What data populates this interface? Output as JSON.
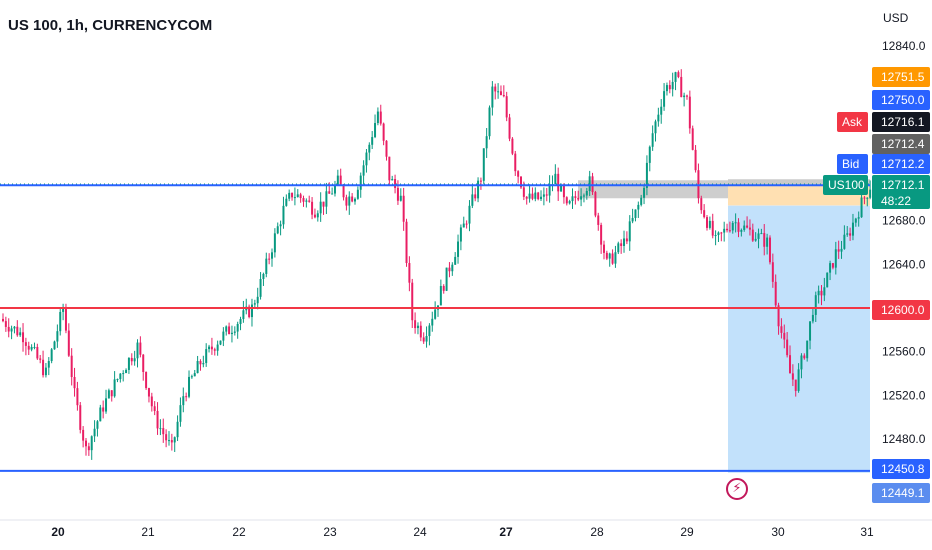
{
  "header": {
    "title": "US 100, 1h, CURRENCYCOM",
    "currency": "USD"
  },
  "icons": {
    "event": "lightning-icon"
  },
  "colors": {
    "up": "#089981",
    "down": "#e91e63",
    "resistance": "#2962ff",
    "support": "#f23645",
    "ask": "#f23645",
    "bid": "#2962ff",
    "last": "#089981",
    "target": "#ff9800",
    "position_stop": "#9e9e9e",
    "position_profit": "#bbdefb",
    "position_entry": "#ffe0b2"
  },
  "chart_data": {
    "type": "candlestick",
    "symbol": "US 100",
    "interval": "1h",
    "source": "CURRENCYCOM",
    "ylim": [
      12432,
      12893
    ],
    "y_ticks": [
      12480.0,
      12520.0,
      12560.0,
      12640.0,
      12680.0,
      12840.0
    ],
    "y_tick_labels": [
      "12480.0",
      "12520.0",
      "12560.0",
      "12640.0",
      "12680.0",
      "12840.0"
    ],
    "x_ticks": [
      "20",
      "21",
      "22",
      "23",
      "24",
      "27",
      "28",
      "29",
      "30",
      "31"
    ],
    "x_ticks_bold": [
      "20",
      "27"
    ],
    "horizontal_lines": [
      {
        "name": "resistance",
        "value": 12712.4
      },
      {
        "name": "support",
        "value": 12600.0
      },
      {
        "name": "lower-level",
        "value": 12450.8
      }
    ],
    "position_tool": {
      "entry": 12712.1,
      "stop": 12716.1,
      "target": 12449.1
    },
    "price_labels": [
      {
        "key": "target",
        "value": "12751.5"
      },
      {
        "key": "level",
        "value": "12750.0"
      },
      {
        "key": "ask",
        "label": "Ask",
        "value": "12716.1"
      },
      {
        "key": "stop",
        "value": "12712.4"
      },
      {
        "key": "bid",
        "label": "Bid",
        "value": "12712.2"
      },
      {
        "key": "last",
        "label": "US100",
        "value": "12712.1",
        "countdown": "48:22"
      },
      {
        "key": "support",
        "value": "12600.0"
      },
      {
        "key": "lower",
        "value": "12450.8"
      },
      {
        "key": "tp",
        "value": "12449.1"
      }
    ],
    "close_path": [
      [
        0,
        12590
      ],
      [
        8,
        12575
      ],
      [
        16,
        12540
      ],
      [
        22,
        12600
      ],
      [
        26,
        12520
      ],
      [
        30,
        12470
      ],
      [
        36,
        12510
      ],
      [
        42,
        12540
      ],
      [
        48,
        12565
      ],
      [
        54,
        12500
      ],
      [
        60,
        12470
      ],
      [
        64,
        12520
      ],
      [
        70,
        12550
      ],
      [
        76,
        12570
      ],
      [
        82,
        12585
      ],
      [
        88,
        12600
      ],
      [
        92,
        12630
      ],
      [
        96,
        12665
      ],
      [
        99,
        12690
      ],
      [
        102,
        12705
      ],
      [
        106,
        12700
      ],
      [
        110,
        12690
      ],
      [
        114,
        12700
      ],
      [
        118,
        12715
      ],
      [
        121,
        12700
      ],
      [
        124,
        12705
      ],
      [
        128,
        12740
      ],
      [
        132,
        12780
      ],
      [
        136,
        12720
      ],
      [
        140,
        12700
      ],
      [
        144,
        12590
      ],
      [
        148,
        12575
      ],
      [
        152,
        12600
      ],
      [
        156,
        12630
      ],
      [
        160,
        12660
      ],
      [
        164,
        12690
      ],
      [
        168,
        12720
      ],
      [
        172,
        12800
      ],
      [
        176,
        12790
      ],
      [
        180,
        12730
      ],
      [
        184,
        12700
      ],
      [
        190,
        12700
      ],
      [
        194,
        12720
      ],
      [
        198,
        12690
      ],
      [
        202,
        12705
      ],
      [
        206,
        12715
      ],
      [
        212,
        12640
      ],
      [
        218,
        12660
      ],
      [
        224,
        12700
      ],
      [
        228,
        12760
      ],
      [
        232,
        12800
      ],
      [
        236,
        12810
      ],
      [
        240,
        12790
      ],
      [
        244,
        12700
      ],
      [
        250,
        12660
      ],
      [
        256,
        12680
      ],
      [
        262,
        12670
      ],
      [
        268,
        12660
      ],
      [
        272,
        12590
      ],
      [
        276,
        12540
      ],
      [
        278,
        12530
      ],
      [
        282,
        12570
      ],
      [
        284,
        12600
      ],
      [
        288,
        12620
      ],
      [
        292,
        12650
      ],
      [
        296,
        12665
      ],
      [
        300,
        12690
      ],
      [
        304,
        12712
      ]
    ]
  }
}
